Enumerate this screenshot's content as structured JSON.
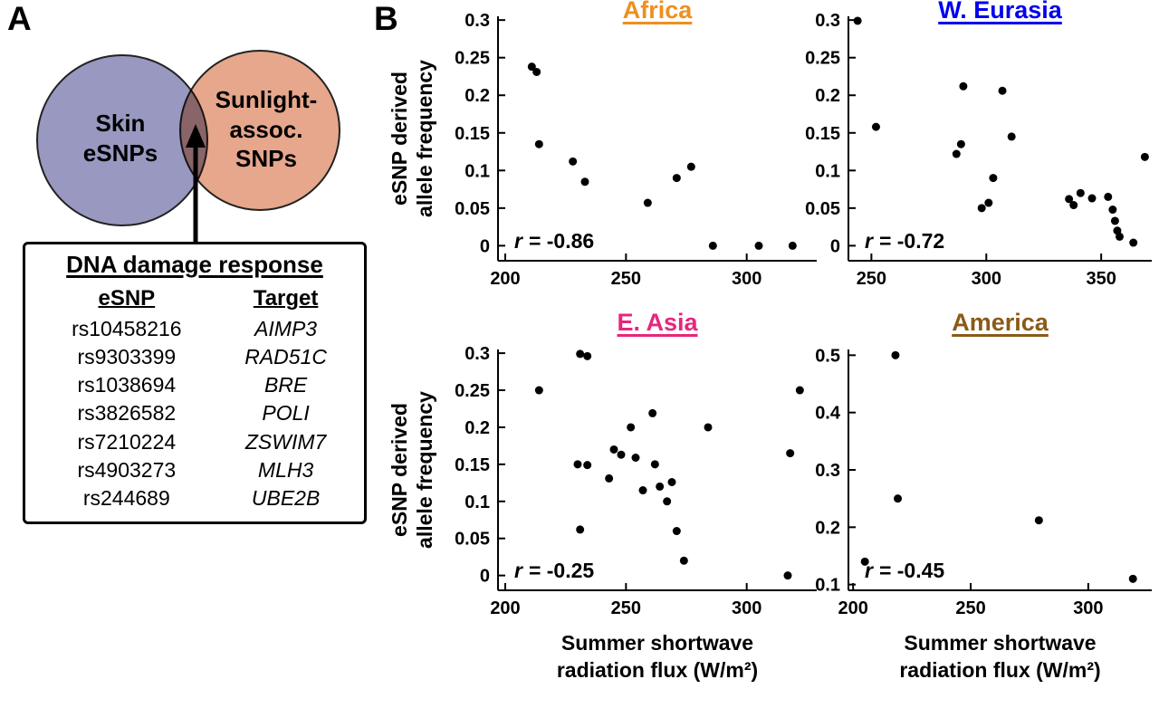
{
  "panel_a": {
    "label": "A",
    "venn": {
      "left_label": "Skin\neSNPs",
      "right_label": "Sunlight-\nassoc.\nSNPs",
      "left_color": "#9898C0",
      "right_color": "#E6A78C"
    },
    "table": {
      "title": "DNA damage response",
      "columns": [
        "eSNP",
        "Target"
      ],
      "rows": [
        [
          "rs10458216",
          "AIMP3"
        ],
        [
          "rs9303399",
          "RAD51C"
        ],
        [
          "rs1038694",
          "BRE"
        ],
        [
          "rs3826582",
          "POLI"
        ],
        [
          "rs7210224",
          "ZSWIM7"
        ],
        [
          "rs4903273",
          "MLH3"
        ],
        [
          "rs244689",
          "UBE2B"
        ]
      ]
    }
  },
  "panel_b": {
    "label": "B",
    "ylabel": "eSNP derived\nallele frequency",
    "xlabel": "Summer shortwave\nradiation flux (W/m²)"
  },
  "chart_data": [
    {
      "type": "scatter",
      "title": "Africa",
      "title_color": "#EE8F1E",
      "r_label": "r = -0.86",
      "xlabel": "Summer shortwave radiation flux (W/m²)",
      "ylabel": "eSNP derived allele frequency",
      "xlim": [
        197,
        329
      ],
      "ylim": [
        -0.02,
        0.305
      ],
      "xticks": [
        200,
        250,
        300
      ],
      "yticks": [
        0,
        0.05,
        0.1,
        0.15,
        0.2,
        0.25,
        0.3
      ],
      "grid": false,
      "points": [
        [
          211,
          0.238
        ],
        [
          213,
          0.231
        ],
        [
          214,
          0.135
        ],
        [
          228,
          0.112
        ],
        [
          233,
          0.085
        ],
        [
          259,
          0.057
        ],
        [
          271,
          0.09
        ],
        [
          277,
          0.105
        ],
        [
          286,
          0
        ],
        [
          305,
          0
        ],
        [
          319,
          0
        ]
      ]
    },
    {
      "type": "scatter",
      "title": "W. Eurasia",
      "title_color": "#0000EE",
      "r_label": "r = -0.72",
      "xlabel": "Summer shortwave radiation flux (W/m²)",
      "ylabel": "eSNP derived allele frequency",
      "xlim": [
        240,
        372
      ],
      "ylim": [
        -0.02,
        0.305
      ],
      "xticks": [
        250,
        300,
        350
      ],
      "yticks": [
        0,
        0.05,
        0.1,
        0.15,
        0.2,
        0.25,
        0.3
      ],
      "grid": false,
      "points": [
        [
          244,
          0.299
        ],
        [
          252,
          0.158
        ],
        [
          287,
          0.122
        ],
        [
          289,
          0.135
        ],
        [
          290,
          0.212
        ],
        [
          298,
          0.05
        ],
        [
          301,
          0.057
        ],
        [
          303,
          0.09
        ],
        [
          307,
          0.206
        ],
        [
          311,
          0.145
        ],
        [
          336,
          0.062
        ],
        [
          338,
          0.054
        ],
        [
          341,
          0.07
        ],
        [
          346,
          0.063
        ],
        [
          353,
          0.065
        ],
        [
          355,
          0.048
        ],
        [
          356,
          0.033
        ],
        [
          357,
          0.02
        ],
        [
          358,
          0.012
        ],
        [
          364,
          0.004
        ],
        [
          369,
          0.118
        ]
      ]
    },
    {
      "type": "scatter",
      "title": "E. Asia",
      "title_color": "#E8257D",
      "r_label": "r = -0.25",
      "xlabel": "Summer shortwave radiation flux (W/m²)",
      "ylabel": "eSNP derived allele frequency",
      "xlim": [
        197,
        329
      ],
      "ylim": [
        -0.02,
        0.305
      ],
      "xticks": [
        200,
        250,
        300
      ],
      "yticks": [
        0,
        0.05,
        0.1,
        0.15,
        0.2,
        0.25,
        0.3
      ],
      "grid": false,
      "points": [
        [
          214,
          0.25
        ],
        [
          231,
          0.299
        ],
        [
          234,
          0.296
        ],
        [
          230,
          0.15
        ],
        [
          234,
          0.149
        ],
        [
          231,
          0.062
        ],
        [
          243,
          0.131
        ],
        [
          245,
          0.17
        ],
        [
          248,
          0.163
        ],
        [
          252,
          0.2
        ],
        [
          254,
          0.159
        ],
        [
          257,
          0.115
        ],
        [
          261,
          0.219
        ],
        [
          262,
          0.15
        ],
        [
          264,
          0.12
        ],
        [
          267,
          0.1
        ],
        [
          269,
          0.126
        ],
        [
          271,
          0.06
        ],
        [
          274,
          0.02
        ],
        [
          284,
          0.2
        ],
        [
          317,
          0.0
        ],
        [
          318,
          0.165
        ],
        [
          322,
          0.25
        ]
      ]
    },
    {
      "type": "scatter",
      "title": "America",
      "title_color": "#8B5A18",
      "r_label": "r = -0.45",
      "xlabel": "Summer shortwave radiation flux (W/m²)",
      "ylabel": "",
      "xlim": [
        198,
        327
      ],
      "ylim": [
        0.09,
        0.51
      ],
      "xticks": [
        200,
        250,
        300
      ],
      "yticks": [
        0.1,
        0.2,
        0.3,
        0.4,
        0.5
      ],
      "grid": false,
      "points": [
        [
          205,
          0.14
        ],
        [
          218,
          0.5
        ],
        [
          219,
          0.25
        ],
        [
          279,
          0.212
        ],
        [
          319,
          0.11
        ]
      ]
    }
  ]
}
